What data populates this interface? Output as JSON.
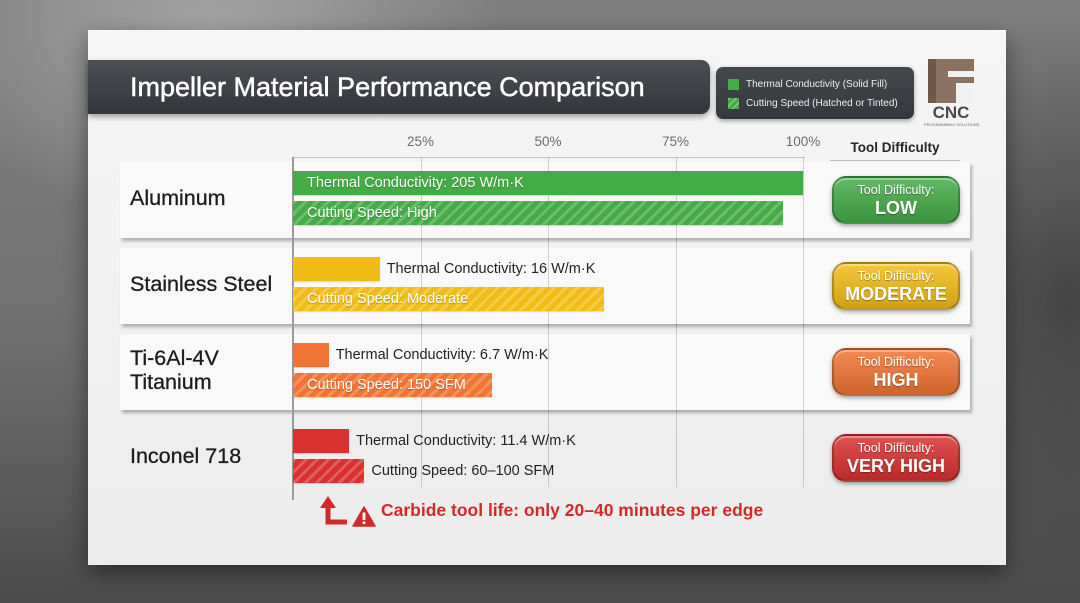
{
  "chart_data": {
    "type": "bar",
    "orientation": "horizontal",
    "title": "Impeller Material Performance Comparison",
    "legend_placement": "top-right",
    "grid": true,
    "xlim": [
      0,
      100
    ],
    "x_ticks": [
      "25%",
      "50%",
      "75%",
      "100%"
    ],
    "categories": [
      "Aluminum",
      "Stainless Steel",
      "Ti-6Al-4V\nTitanium",
      "Inconel 718"
    ],
    "series": [
      {
        "name": "Thermal Conductivity (Solid Fill)",
        "values": [
          100,
          17,
          7,
          11
        ],
        "labels": [
          "Thermal Conductivity: 205 W/m·K",
          "Thermal Conductivity: 16 W/m·K",
          "Thermal Conductivity: 6.7 W/m·K",
          "Thermal Conductivity: 11.4 W/m·K"
        ]
      },
      {
        "name": "Cutting Speed (Hatched or Tinted)",
        "values": [
          96,
          61,
          39,
          14
        ],
        "labels": [
          "Cutting Speed: High",
          "Cutting Speed: Moderate",
          "Cutting Speed: 150 SFM",
          "Cutting Speed: 60–100 SFM"
        ]
      }
    ],
    "colors": [
      "#45ab47",
      "#f2bc17",
      "#f27433",
      "#d8312f"
    ],
    "tool_difficulty": {
      "header": "Tool Difficulty",
      "prefix": "Tool Difficulty:",
      "levels": [
        "LOW",
        "MODERATE",
        "HIGH",
        "VERY HIGH"
      ]
    }
  },
  "logo": {
    "text": "CNC",
    "subtext": "PROGRAMMING SOLUTIONS"
  },
  "annotation": {
    "text": "Carbide tool life: only 20–40 minutes per edge",
    "color": "#d22a2a",
    "icon": "warning-icon",
    "arrow": "arrow-up-icon"
  }
}
